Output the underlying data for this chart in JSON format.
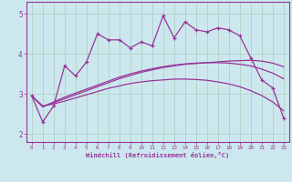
{
  "xlabel": "Windchill (Refroidissement éolien,°C)",
  "bg_color": "#cce8ee",
  "grid_color": "#aaccbb",
  "line_color": "#993399",
  "series1_x": [
    0,
    1,
    2,
    3,
    4,
    5,
    6,
    7,
    8,
    9,
    10,
    11,
    12,
    13,
    14,
    15,
    16,
    17,
    18,
    19,
    20,
    21,
    22,
    23
  ],
  "series1_y": [
    2.95,
    2.3,
    2.7,
    3.7,
    3.45,
    3.8,
    4.5,
    4.35,
    4.35,
    4.15,
    4.3,
    4.2,
    4.95,
    4.4,
    4.8,
    4.6,
    4.55,
    4.65,
    4.6,
    4.45,
    3.9,
    3.35,
    3.15,
    2.4
  ],
  "series2_x": [
    0,
    1,
    2,
    3,
    4,
    5,
    6,
    7,
    8,
    9,
    10,
    11,
    12,
    13,
    14,
    15,
    16,
    17,
    18,
    19,
    20,
    21,
    22,
    23
  ],
  "series2_y": [
    2.95,
    2.7,
    2.75,
    2.82,
    2.9,
    2.98,
    3.06,
    3.14,
    3.2,
    3.26,
    3.3,
    3.33,
    3.35,
    3.37,
    3.37,
    3.36,
    3.34,
    3.3,
    3.25,
    3.18,
    3.08,
    2.96,
    2.8,
    2.58
  ],
  "series3_x": [
    0,
    1,
    2,
    3,
    4,
    5,
    6,
    7,
    8,
    9,
    10,
    11,
    12,
    13,
    14,
    15,
    16,
    17,
    18,
    19,
    20,
    21,
    22,
    23
  ],
  "series3_y": [
    2.95,
    2.68,
    2.8,
    2.92,
    3.02,
    3.12,
    3.22,
    3.32,
    3.42,
    3.5,
    3.57,
    3.63,
    3.68,
    3.72,
    3.75,
    3.77,
    3.78,
    3.78,
    3.77,
    3.74,
    3.7,
    3.62,
    3.52,
    3.38
  ],
  "series4_x": [
    0,
    1,
    2,
    3,
    4,
    5,
    6,
    7,
    8,
    9,
    10,
    11,
    12,
    13,
    14,
    15,
    16,
    17,
    18,
    19,
    20,
    21,
    22,
    23
  ],
  "series4_y": [
    2.95,
    2.68,
    2.78,
    2.88,
    2.98,
    3.08,
    3.18,
    3.28,
    3.38,
    3.46,
    3.54,
    3.6,
    3.66,
    3.7,
    3.74,
    3.76,
    3.78,
    3.8,
    3.82,
    3.83,
    3.84,
    3.82,
    3.77,
    3.68
  ],
  "ylim": [
    1.8,
    5.3
  ],
  "yticks": [
    2,
    3,
    4,
    5
  ],
  "xtick_labels": [
    "0",
    "1",
    "2",
    "3",
    "4",
    "5",
    "6",
    "7",
    "8",
    "9",
    "10",
    "11",
    "12",
    "13",
    "14",
    "15",
    "16",
    "17",
    "18",
    "19",
    "20",
    "21",
    "22",
    "23"
  ]
}
